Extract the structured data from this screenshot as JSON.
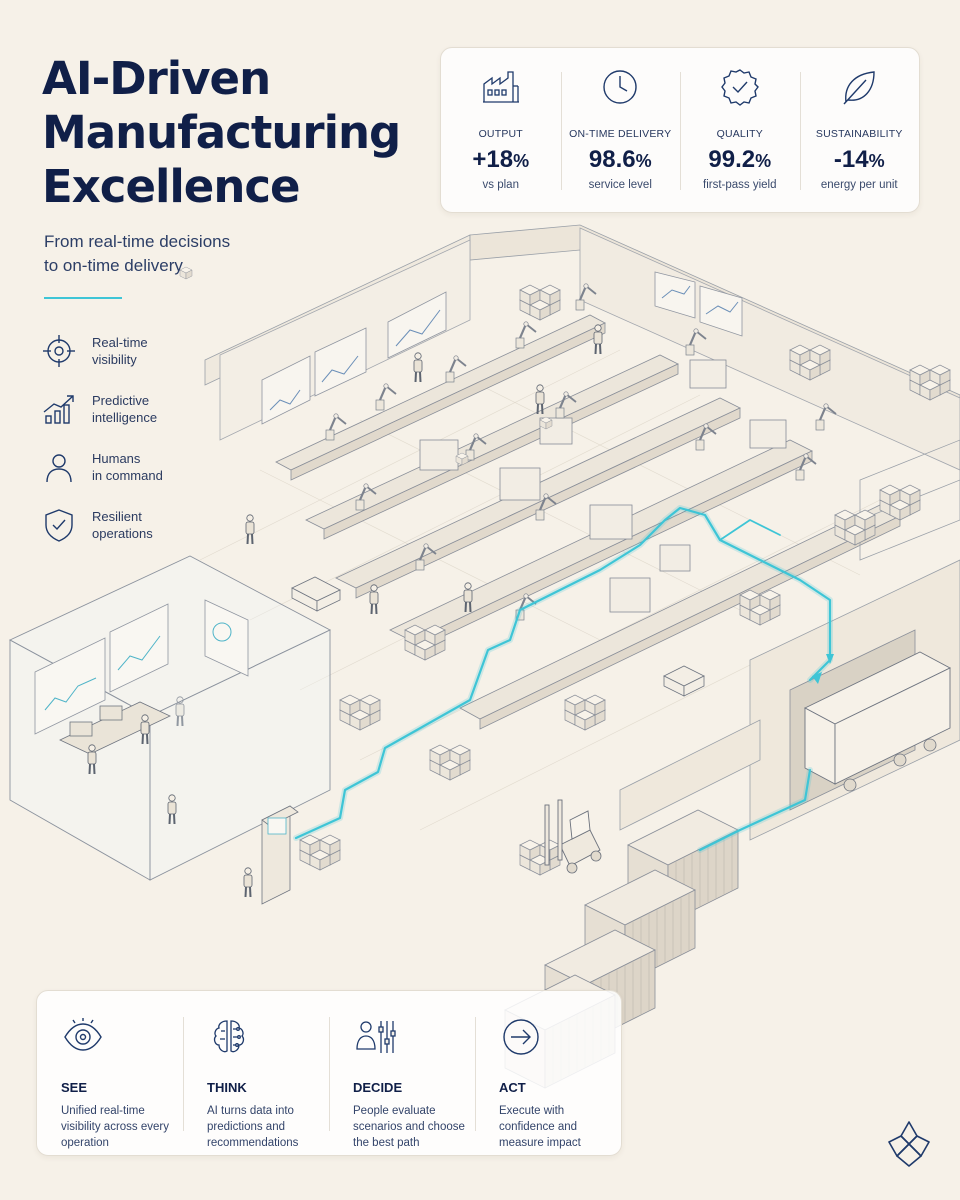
{
  "header": {
    "title_lines": [
      "AI-Driven",
      "Manufacturing",
      "Excellence"
    ],
    "subtitle_lines": [
      "From real-time decisions",
      "to on-time delivery"
    ]
  },
  "colors": {
    "accent": "#3ec5d6",
    "navy": "#101f48",
    "background": "#f6f1e8"
  },
  "features": [
    {
      "icon": "target-icon",
      "line1": "Real-time",
      "line2": "visibility"
    },
    {
      "icon": "growth-chart-icon",
      "line1": "Predictive",
      "line2": "intelligence"
    },
    {
      "icon": "person-icon",
      "line1": "Humans",
      "line2": "in command"
    },
    {
      "icon": "shield-check-icon",
      "line1": "Resilient",
      "line2": "operations"
    }
  ],
  "kpis": [
    {
      "icon": "factory-icon",
      "label": "OUTPUT",
      "value": "+18",
      "unit": "%",
      "sub": "vs plan"
    },
    {
      "icon": "clock-icon",
      "label": "ON-TIME DELIVERY",
      "value": "98.6",
      "unit": "%",
      "sub": "service level"
    },
    {
      "icon": "badge-check-icon",
      "label": "QUALITY",
      "value": "99.2",
      "unit": "%",
      "sub": "first-pass yield"
    },
    {
      "icon": "leaf-icon",
      "label": "SUSTAINABILITY",
      "value": "-14",
      "unit": "%",
      "sub": "energy per unit"
    }
  ],
  "steps": [
    {
      "icon": "eye-icon",
      "title": "SEE",
      "desc": "Unified real-time visibility across every operation"
    },
    {
      "icon": "brain-circuit-icon",
      "title": "THINK",
      "desc": "AI turns data into predictions and recommendations"
    },
    {
      "icon": "person-sliders-icon",
      "title": "DECIDE",
      "desc": "People evaluate scenarios and choose the best path"
    },
    {
      "icon": "arrow-circle-icon",
      "title": "ACT",
      "desc": "Execute with confidence and measure impact"
    }
  ],
  "logo": {
    "icon": "flower-logo-icon"
  }
}
